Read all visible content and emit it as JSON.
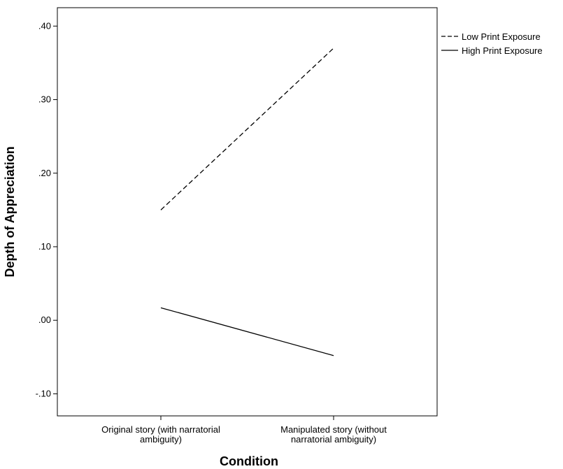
{
  "chart_data": {
    "type": "line",
    "xlabel": "Condition",
    "ylabel": "Depth of Appreciation",
    "categories": [
      [
        "Original story (with narratorial",
        "ambiguity)"
      ],
      [
        "Manipulated story (without",
        "narratorial ambiguity)"
      ]
    ],
    "ylim": [
      -0.13,
      0.425
    ],
    "yticks": [
      -0.1,
      0.0,
      0.1,
      0.2,
      0.3,
      0.4
    ],
    "ytick_labels": [
      "-.10",
      ".00",
      ".10",
      ".20",
      ".30",
      ".40"
    ],
    "grid": false,
    "legend_position": "top-right, outside plot",
    "series": [
      {
        "name": "Low Print Exposure",
        "line_style": "dashed",
        "color": "#000000",
        "values": [
          0.15,
          0.37
        ]
      },
      {
        "name": "High Print Exposure",
        "line_style": "solid",
        "color": "#000000",
        "values": [
          0.017,
          -0.048
        ]
      }
    ]
  }
}
